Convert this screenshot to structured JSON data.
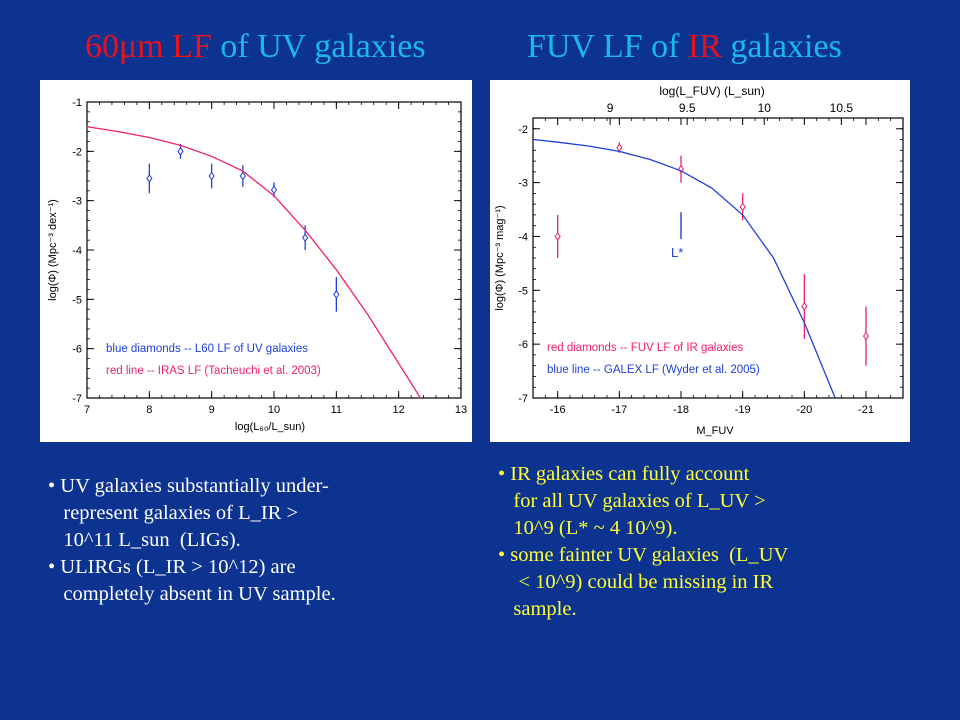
{
  "titles": {
    "left": {
      "part1": "60μm LF",
      "part2": " of ",
      "part3": "UV",
      "part4": " galaxies"
    },
    "right": {
      "part1": "FUV LF",
      "part2": " of ",
      "part3": "IR",
      "part4": " galaxies"
    }
  },
  "colors": {
    "background": "#0d3391",
    "red": "#e8121e",
    "cyan": "#19b8ee",
    "yellow": "#ffff33",
    "white": "#ffffff",
    "blue_series": "#1f3fdc",
    "red_series": "#f0206e"
  },
  "chart_data": [
    {
      "type": "scatter",
      "xlabel": "log(L₆₀/L_sun)",
      "ylabel": "log(Φ) (Mpc⁻³ dex⁻¹)",
      "xlim": [
        7,
        13
      ],
      "ylim": [
        -7,
        -1
      ],
      "xticks": [
        7,
        8,
        9,
        10,
        11,
        12,
        13
      ],
      "yticks": [
        -1,
        -2,
        -3,
        -4,
        -5,
        -6,
        -7
      ],
      "series": [
        {
          "name": "blue diamonds -- L60 LF of UV galaxies",
          "kind": "points",
          "color": "#1f3fdc",
          "x": [
            8.0,
            8.5,
            9.0,
            9.5,
            10.0,
            10.5,
            11.0
          ],
          "y": [
            -2.55,
            -2.0,
            -2.5,
            -2.5,
            -2.78,
            -3.75,
            -4.9
          ],
          "err": [
            0.3,
            0.15,
            0.25,
            0.22,
            0.15,
            0.25,
            0.35
          ]
        },
        {
          "name": "red line -- IRAS LF (Tacheuchi et al. 2003)",
          "kind": "line",
          "color": "#f0206e",
          "x": [
            7.0,
            7.5,
            8.0,
            8.5,
            9.0,
            9.5,
            10.0,
            10.5,
            11.0,
            11.5,
            12.0,
            12.5
          ],
          "y": [
            -1.5,
            -1.6,
            -1.72,
            -1.88,
            -2.1,
            -2.4,
            -2.9,
            -3.6,
            -4.4,
            -5.3,
            -6.3,
            -7.3
          ]
        }
      ]
    },
    {
      "type": "scatter",
      "xlabel": "M_FUV",
      "ylabel": "log(Φ) (Mpc⁻³ mag⁻¹)",
      "top_axis_label": "log(L_FUV) (L_sun)",
      "xlim": [
        -15.6,
        -21.6
      ],
      "ylim": [
        -7,
        -1.8
      ],
      "xticks": [
        -16,
        -17,
        -18,
        -19,
        -20,
        -21
      ],
      "top_ticks": [
        "9",
        "9.5",
        "10",
        "10.5"
      ],
      "yticks": [
        -2,
        -3,
        -4,
        -5,
        -6,
        -7
      ],
      "annotation": "L*",
      "series": [
        {
          "name": "red diamonds -- FUV LF of IR galaxies",
          "kind": "points",
          "color": "#f0206e",
          "x": [
            -16,
            -17,
            -18,
            -19,
            -20,
            -21
          ],
          "y": [
            -4.0,
            -2.35,
            -2.75,
            -3.45,
            -5.3,
            -5.85
          ],
          "err": [
            0.4,
            0.1,
            0.25,
            0.25,
            0.6,
            0.55
          ]
        },
        {
          "name": "blue line -- GALEX LF (Wyder et al. 2005)",
          "kind": "line",
          "color": "#1f3fdc",
          "x": [
            -15.6,
            -16.0,
            -16.5,
            -17.0,
            -17.5,
            -18.0,
            -18.5,
            -19.0,
            -19.5,
            -20.0,
            -20.5
          ],
          "y": [
            -2.2,
            -2.25,
            -2.32,
            -2.42,
            -2.57,
            -2.78,
            -3.1,
            -3.6,
            -4.4,
            -5.6,
            -7.0
          ]
        }
      ]
    }
  ],
  "bullets_left": [
    "• UV galaxies substantially under-",
    "   represent galaxies of L_IR >",
    "   10^11 L_sun  (LIGs).",
    "• ULIRGs (L_IR > 10^12) are",
    "   completely absent in UV sample."
  ],
  "bullets_right": [
    "• IR galaxies can fully account",
    "   for all UV galaxies of L_UV >",
    "   10^9 (L* ~ 4 10^9).",
    "• some fainter UV galaxies  (L_UV",
    "    < 10^9) could be missing in IR",
    "   sample."
  ]
}
